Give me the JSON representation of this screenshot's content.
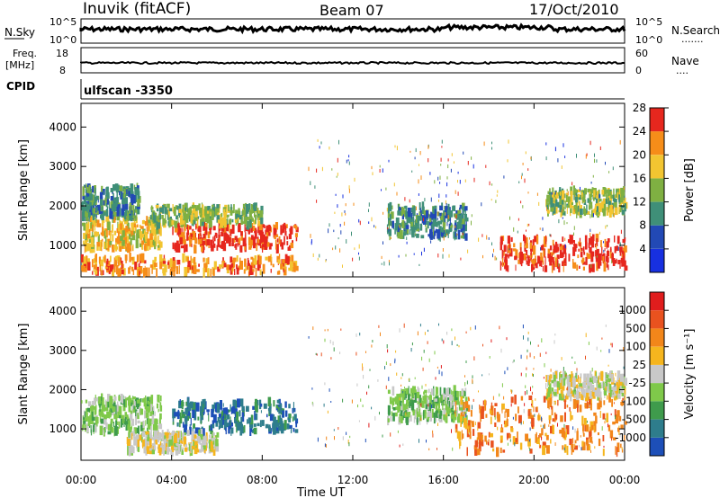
{
  "header": {
    "station": "Inuvik (fitACF)",
    "beam": "Beam 07",
    "date": "17/Oct/2010"
  },
  "panels": {
    "nsky": {
      "left_label": "N.Sky",
      "y_ticks_left": [
        "10^5",
        "10^0"
      ],
      "y_ticks_right": [
        "10^5",
        "10^0"
      ],
      "right_label": "N.Search",
      "right_dots": "......."
    },
    "freq": {
      "left_label_1": "Freq.",
      "left_label_2": "[MHz]",
      "y_ticks_left": [
        "18",
        "8"
      ],
      "y_ticks_right": [
        "60",
        "0"
      ],
      "right_label": "Nave",
      "right_dots": "...."
    },
    "cpid": {
      "label": "CPID",
      "value": "ulfscan -3350"
    }
  },
  "chart_data": [
    {
      "type": "heatmap",
      "name": "power",
      "xlabel": "",
      "ylabel": "Slant Range [km]",
      "x_ticks": [
        "00:00",
        "04:00",
        "08:00",
        "12:00",
        "16:00",
        "20:00",
        "00:00"
      ],
      "y_ticks": [
        "1000",
        "2000",
        "3000",
        "4000"
      ],
      "ylim": [
        200,
        4600
      ],
      "colorbar": {
        "label": "Power [dB]",
        "ticks": [
          "4",
          "8",
          "12",
          "16",
          "20",
          "24",
          "28"
        ],
        "colors": [
          "#1730e0",
          "#2249b5",
          "#3f8f78",
          "#7fb042",
          "#f2c531",
          "#f68d19",
          "#e6271e"
        ]
      },
      "regions": [
        {
          "t0": 0.0,
          "t1": 9.5,
          "r0": 300,
          "r1": 700,
          "level": 5
        },
        {
          "t0": 0.0,
          "t1": 3.5,
          "r0": 900,
          "r1": 1700,
          "level": 4
        },
        {
          "t0": 0.0,
          "t1": 2.5,
          "r0": 1700,
          "r1": 2500,
          "level": 2
        },
        {
          "t0": 4.0,
          "t1": 9.5,
          "r0": 900,
          "r1": 1500,
          "level": 6
        },
        {
          "t0": 3.0,
          "t1": 8.0,
          "r0": 1500,
          "r1": 2000,
          "level": 3
        },
        {
          "t0": 13.5,
          "t1": 17.0,
          "r0": 1200,
          "r1": 2000,
          "level": 2
        },
        {
          "t0": 18.5,
          "t1": 24.0,
          "r0": 400,
          "r1": 1200,
          "level": 6
        },
        {
          "t0": 20.5,
          "t1": 24.0,
          "r0": 1800,
          "r1": 2400,
          "level": 3
        }
      ]
    },
    {
      "type": "heatmap",
      "name": "velocity",
      "xlabel": "Time UT",
      "ylabel": "Slant Range [km]",
      "x_ticks": [
        "00:00",
        "04:00",
        "08:00",
        "12:00",
        "16:00",
        "20:00",
        "00:00"
      ],
      "y_ticks": [
        "1000",
        "2000",
        "3000",
        "4000"
      ],
      "ylim": [
        200,
        4600
      ],
      "colorbar": {
        "label": "Velocity [m s⁻¹]",
        "ticks": [
          "1000",
          "500",
          "100",
          "25",
          "-25",
          "-100",
          "-500",
          "-1000"
        ],
        "colors": [
          "#1d4fb8",
          "#2e7d8c",
          "#3f9b4c",
          "#7fc94a",
          "#c8c8c8",
          "#f5b51e",
          "#f2861a",
          "#e9521f",
          "#e01d1d"
        ]
      },
      "regions": [
        {
          "t0": 0.0,
          "t1": 3.5,
          "r0": 900,
          "r1": 1800,
          "level": 3
        },
        {
          "t0": 4.0,
          "t1": 9.5,
          "r0": 900,
          "r1": 1700,
          "level": 1
        },
        {
          "t0": 2.0,
          "t1": 6.0,
          "r0": 400,
          "r1": 900,
          "level": 4
        },
        {
          "t0": 13.5,
          "t1": 17.0,
          "r0": 1200,
          "r1": 2000,
          "level": 3
        },
        {
          "t0": 16.5,
          "t1": 24.0,
          "r0": 400,
          "r1": 1800,
          "level": 6
        },
        {
          "t0": 20.5,
          "t1": 24.0,
          "r0": 1800,
          "r1": 2400,
          "level": 4
        }
      ]
    }
  ]
}
